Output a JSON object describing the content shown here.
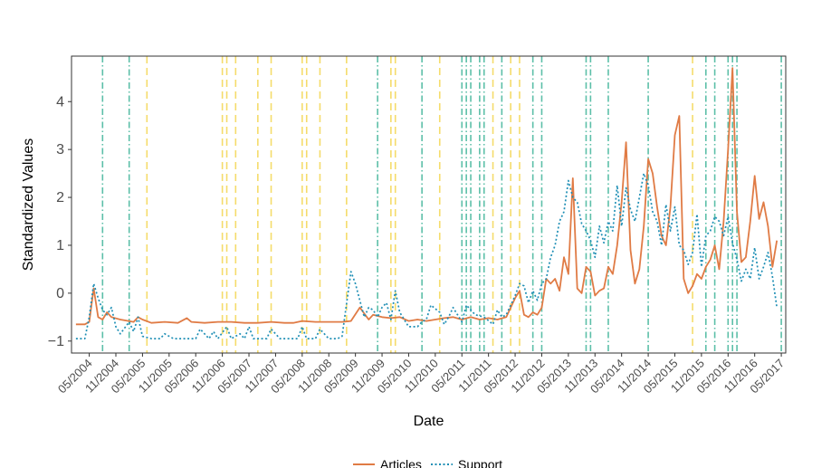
{
  "chart_data": {
    "type": "line",
    "title": "",
    "xlabel": "Date",
    "ylabel": "Standardized Values",
    "x_start": "2004-01",
    "x_end": "2017-06",
    "ylim": [
      -1.25,
      4.95
    ],
    "grid": false,
    "legend_position": "bottom",
    "x_ticks": [
      "2004-05",
      "2004-11",
      "2005-05",
      "2005-11",
      "2006-05",
      "2006-11",
      "2007-05",
      "2007-11",
      "2008-05",
      "2008-11",
      "2009-05",
      "2009-11",
      "2010-05",
      "2010-11",
      "2011-05",
      "2011-11",
      "2012-05",
      "2012-11",
      "2013-05",
      "2013-11",
      "2014-05",
      "2014-11",
      "2015-05",
      "2015-11",
      "2016-05",
      "2016-11",
      "2017-05"
    ],
    "x_tick_labels": [
      "05/2004",
      "11/2004",
      "05/2005",
      "11/2005",
      "05/2006",
      "11/2006",
      "05/2007",
      "11/2007",
      "05/2008",
      "11/2008",
      "05/2009",
      "11/2009",
      "05/2010",
      "11/2010",
      "05/2011",
      "11/2011",
      "05/2012",
      "11/2012",
      "05/2013",
      "11/2013",
      "05/2014",
      "11/2014",
      "05/2015",
      "11/2015",
      "05/2016",
      "11/2016",
      "05/2017"
    ],
    "y_ticks": [
      -1,
      0,
      1,
      2,
      3,
      4
    ],
    "y_tick_labels": [
      "−1",
      "0",
      "1",
      "2",
      "3",
      "4"
    ],
    "series": [
      {
        "name": "Articles",
        "color": "#e07b45",
        "dash": "solid",
        "points": [
          [
            "2004-02",
            -0.65
          ],
          [
            "2004-04",
            -0.65
          ],
          [
            "2004-05",
            -0.6
          ],
          [
            "2004-06",
            0.1
          ],
          [
            "2004-07",
            -0.5
          ],
          [
            "2004-08",
            -0.55
          ],
          [
            "2004-09",
            -0.4
          ],
          [
            "2004-10",
            -0.5
          ],
          [
            "2004-12",
            -0.55
          ],
          [
            "2005-03",
            -0.6
          ],
          [
            "2005-04",
            -0.5
          ],
          [
            "2005-05",
            -0.55
          ],
          [
            "2005-07",
            -0.62
          ],
          [
            "2005-10",
            -0.6
          ],
          [
            "2006-01",
            -0.62
          ],
          [
            "2006-03",
            -0.52
          ],
          [
            "2006-04",
            -0.6
          ],
          [
            "2006-07",
            -0.62
          ],
          [
            "2006-10",
            -0.6
          ],
          [
            "2007-01",
            -0.6
          ],
          [
            "2007-04",
            -0.62
          ],
          [
            "2007-07",
            -0.62
          ],
          [
            "2007-10",
            -0.6
          ],
          [
            "2008-01",
            -0.62
          ],
          [
            "2008-03",
            -0.62
          ],
          [
            "2008-05",
            -0.58
          ],
          [
            "2008-08",
            -0.6
          ],
          [
            "2008-11",
            -0.6
          ],
          [
            "2009-02",
            -0.6
          ],
          [
            "2009-04",
            -0.58
          ],
          [
            "2009-06",
            -0.3
          ],
          [
            "2009-08",
            -0.55
          ],
          [
            "2009-09",
            -0.45
          ],
          [
            "2009-11",
            -0.5
          ],
          [
            "2010-01",
            -0.52
          ],
          [
            "2010-03",
            -0.5
          ],
          [
            "2010-05",
            -0.58
          ],
          [
            "2010-07",
            -0.55
          ],
          [
            "2010-09",
            -0.58
          ],
          [
            "2010-11",
            -0.55
          ],
          [
            "2011-01",
            -0.52
          ],
          [
            "2011-03",
            -0.5
          ],
          [
            "2011-05",
            -0.55
          ],
          [
            "2011-07",
            -0.5
          ],
          [
            "2011-09",
            -0.55
          ],
          [
            "2011-11",
            -0.52
          ],
          [
            "2012-01",
            -0.55
          ],
          [
            "2012-03",
            -0.5
          ],
          [
            "2012-05",
            -0.1
          ],
          [
            "2012-06",
            0.05
          ],
          [
            "2012-07",
            -0.45
          ],
          [
            "2012-08",
            -0.5
          ],
          [
            "2012-09",
            -0.4
          ],
          [
            "2012-10",
            -0.45
          ],
          [
            "2012-11",
            -0.3
          ],
          [
            "2012-12",
            0.3
          ],
          [
            "2013-01",
            0.2
          ],
          [
            "2013-02",
            0.3
          ],
          [
            "2013-03",
            0.05
          ],
          [
            "2013-04",
            0.75
          ],
          [
            "2013-05",
            0.4
          ],
          [
            "2013-06",
            2.4
          ],
          [
            "2013-07",
            0.1
          ],
          [
            "2013-08",
            0.0
          ],
          [
            "2013-09",
            0.55
          ],
          [
            "2013-10",
            0.45
          ],
          [
            "2013-11",
            -0.05
          ],
          [
            "2013-12",
            0.05
          ],
          [
            "2014-01",
            0.1
          ],
          [
            "2014-02",
            0.55
          ],
          [
            "2014-03",
            0.4
          ],
          [
            "2014-04",
            1.0
          ],
          [
            "2014-05",
            1.9
          ],
          [
            "2014-06",
            3.15
          ],
          [
            "2014-07",
            0.9
          ],
          [
            "2014-08",
            0.2
          ],
          [
            "2014-09",
            0.5
          ],
          [
            "2014-10",
            1.4
          ],
          [
            "2014-11",
            2.8
          ],
          [
            "2014-12",
            2.5
          ],
          [
            "2015-01",
            1.8
          ],
          [
            "2015-02",
            1.2
          ],
          [
            "2015-03",
            1.0
          ],
          [
            "2015-04",
            1.8
          ],
          [
            "2015-05",
            3.3
          ],
          [
            "2015-06",
            3.7
          ],
          [
            "2015-07",
            0.3
          ],
          [
            "2015-08",
            0.0
          ],
          [
            "2015-09",
            0.15
          ],
          [
            "2015-10",
            0.4
          ],
          [
            "2015-11",
            0.3
          ],
          [
            "2015-12",
            0.55
          ],
          [
            "2016-01",
            0.7
          ],
          [
            "2016-02",
            1.0
          ],
          [
            "2016-03",
            0.5
          ],
          [
            "2016-04",
            1.5
          ],
          [
            "2016-05",
            3.0
          ],
          [
            "2016-06",
            4.7
          ],
          [
            "2016-07",
            1.7
          ],
          [
            "2016-08",
            0.65
          ],
          [
            "2016-09",
            0.75
          ],
          [
            "2016-10",
            1.5
          ],
          [
            "2016-11",
            2.45
          ],
          [
            "2016-12",
            1.55
          ],
          [
            "2017-01",
            1.9
          ],
          [
            "2017-02",
            1.4
          ],
          [
            "2017-03",
            0.55
          ],
          [
            "2017-04",
            1.1
          ]
        ]
      },
      {
        "name": "Support",
        "color": "#1f8fb5",
        "dash": "dotted",
        "points": [
          [
            "2004-02",
            -0.95
          ],
          [
            "2004-04",
            -0.95
          ],
          [
            "2004-05",
            -0.5
          ],
          [
            "2004-06",
            0.2
          ],
          [
            "2004-07",
            -0.1
          ],
          [
            "2004-08",
            -0.35
          ],
          [
            "2004-09",
            -0.45
          ],
          [
            "2004-10",
            -0.3
          ],
          [
            "2004-11",
            -0.7
          ],
          [
            "2004-12",
            -0.85
          ],
          [
            "2005-02",
            -0.6
          ],
          [
            "2005-03",
            -0.8
          ],
          [
            "2005-04",
            -0.5
          ],
          [
            "2005-05",
            -0.9
          ],
          [
            "2005-07",
            -0.95
          ],
          [
            "2005-09",
            -0.95
          ],
          [
            "2005-10",
            -0.85
          ],
          [
            "2005-12",
            -0.95
          ],
          [
            "2006-03",
            -0.95
          ],
          [
            "2006-05",
            -0.95
          ],
          [
            "2006-06",
            -0.75
          ],
          [
            "2006-08",
            -0.95
          ],
          [
            "2006-09",
            -0.8
          ],
          [
            "2006-10",
            -0.95
          ],
          [
            "2006-12",
            -0.7
          ],
          [
            "2007-01",
            -0.95
          ],
          [
            "2007-03",
            -0.85
          ],
          [
            "2007-04",
            -0.95
          ],
          [
            "2007-05",
            -0.7
          ],
          [
            "2007-06",
            -0.95
          ],
          [
            "2007-09",
            -0.95
          ],
          [
            "2007-10",
            -0.75
          ],
          [
            "2007-12",
            -0.95
          ],
          [
            "2008-02",
            -0.95
          ],
          [
            "2008-04",
            -0.95
          ],
          [
            "2008-05",
            -0.7
          ],
          [
            "2008-06",
            -0.95
          ],
          [
            "2008-08",
            -0.95
          ],
          [
            "2008-09",
            -0.75
          ],
          [
            "2008-11",
            -0.95
          ],
          [
            "2009-01",
            -0.95
          ],
          [
            "2009-02",
            -0.9
          ],
          [
            "2009-04",
            0.45
          ],
          [
            "2009-05",
            0.2
          ],
          [
            "2009-06",
            -0.15
          ],
          [
            "2009-07",
            -0.5
          ],
          [
            "2009-08",
            -0.3
          ],
          [
            "2009-09",
            -0.35
          ],
          [
            "2009-10",
            -0.5
          ],
          [
            "2009-11",
            -0.3
          ],
          [
            "2009-12",
            -0.2
          ],
          [
            "2010-01",
            -0.55
          ],
          [
            "2010-02",
            0.05
          ],
          [
            "2010-03",
            -0.4
          ],
          [
            "2010-05",
            -0.7
          ],
          [
            "2010-07",
            -0.7
          ],
          [
            "2010-08",
            -0.6
          ],
          [
            "2010-09",
            -0.55
          ],
          [
            "2010-10",
            -0.25
          ],
          [
            "2010-12",
            -0.4
          ],
          [
            "2011-01",
            -0.65
          ],
          [
            "2011-02",
            -0.5
          ],
          [
            "2011-03",
            -0.3
          ],
          [
            "2011-05",
            -0.6
          ],
          [
            "2011-06",
            -0.25
          ],
          [
            "2011-08",
            -0.45
          ],
          [
            "2011-10",
            -0.5
          ],
          [
            "2011-12",
            -0.65
          ],
          [
            "2012-01",
            -0.35
          ],
          [
            "2012-02",
            -0.5
          ],
          [
            "2012-03",
            -0.45
          ],
          [
            "2012-05",
            -0.05
          ],
          [
            "2012-06",
            0.2
          ],
          [
            "2012-07",
            0.15
          ],
          [
            "2012-08",
            -0.2
          ],
          [
            "2012-09",
            0.05
          ],
          [
            "2012-10",
            -0.15
          ],
          [
            "2012-11",
            0.2
          ],
          [
            "2012-12",
            0.3
          ],
          [
            "2013-01",
            0.75
          ],
          [
            "2013-02",
            1.0
          ],
          [
            "2013-03",
            1.5
          ],
          [
            "2013-04",
            1.7
          ],
          [
            "2013-05",
            2.35
          ],
          [
            "2013-06",
            2.0
          ],
          [
            "2013-07",
            1.9
          ],
          [
            "2013-08",
            1.45
          ],
          [
            "2013-09",
            1.3
          ],
          [
            "2013-10",
            1.1
          ],
          [
            "2013-11",
            0.75
          ],
          [
            "2013-12",
            1.4
          ],
          [
            "2014-01",
            1.05
          ],
          [
            "2014-02",
            1.5
          ],
          [
            "2014-03",
            1.3
          ],
          [
            "2014-04",
            2.25
          ],
          [
            "2014-05",
            1.4
          ],
          [
            "2014-06",
            2.2
          ],
          [
            "2014-07",
            1.75
          ],
          [
            "2014-08",
            1.5
          ],
          [
            "2014-09",
            2.0
          ],
          [
            "2014-10",
            2.5
          ],
          [
            "2014-11",
            2.25
          ],
          [
            "2014-12",
            1.7
          ],
          [
            "2015-01",
            1.5
          ],
          [
            "2015-02",
            1.0
          ],
          [
            "2015-03",
            1.85
          ],
          [
            "2015-04",
            1.3
          ],
          [
            "2015-05",
            1.8
          ],
          [
            "2015-06",
            1.0
          ],
          [
            "2015-07",
            0.9
          ],
          [
            "2015-08",
            0.6
          ],
          [
            "2015-09",
            0.85
          ],
          [
            "2015-10",
            1.65
          ],
          [
            "2015-11",
            0.55
          ],
          [
            "2015-12",
            1.2
          ],
          [
            "2016-01",
            1.3
          ],
          [
            "2016-02",
            1.6
          ],
          [
            "2016-03",
            1.5
          ],
          [
            "2016-04",
            1.2
          ],
          [
            "2016-05",
            1.6
          ],
          [
            "2016-06",
            1.05
          ],
          [
            "2016-07",
            0.7
          ],
          [
            "2016-08",
            0.25
          ],
          [
            "2016-09",
            0.5
          ],
          [
            "2016-10",
            0.3
          ],
          [
            "2016-11",
            0.95
          ],
          [
            "2016-12",
            0.3
          ],
          [
            "2017-01",
            0.55
          ],
          [
            "2017-02",
            0.85
          ],
          [
            "2017-03",
            0.35
          ],
          [
            "2017-04",
            -0.3
          ]
        ]
      }
    ],
    "event_lines": {
      "yellow_dashed": {
        "color": "#f5dc6b",
        "dates": [
          "2005-06",
          "2006-11",
          "2006-12",
          "2007-02",
          "2007-07",
          "2007-10",
          "2008-05",
          "2008-06",
          "2008-09",
          "2009-03",
          "2010-01",
          "2010-02",
          "2010-12",
          "2011-12",
          "2012-04",
          "2012-06",
          "2015-09"
        ]
      },
      "green_dotdash": {
        "color": "#5cbfa8",
        "dates": [
          "2004-08",
          "2005-02",
          "2009-10",
          "2010-08",
          "2011-05",
          "2011-06",
          "2011-07",
          "2011-09",
          "2011-10",
          "2012-02",
          "2012-09",
          "2012-11",
          "2013-09",
          "2013-10",
          "2014-02",
          "2014-11",
          "2015-12",
          "2016-02",
          "2016-05",
          "2016-06",
          "2016-07",
          "2017-05"
        ]
      }
    }
  }
}
